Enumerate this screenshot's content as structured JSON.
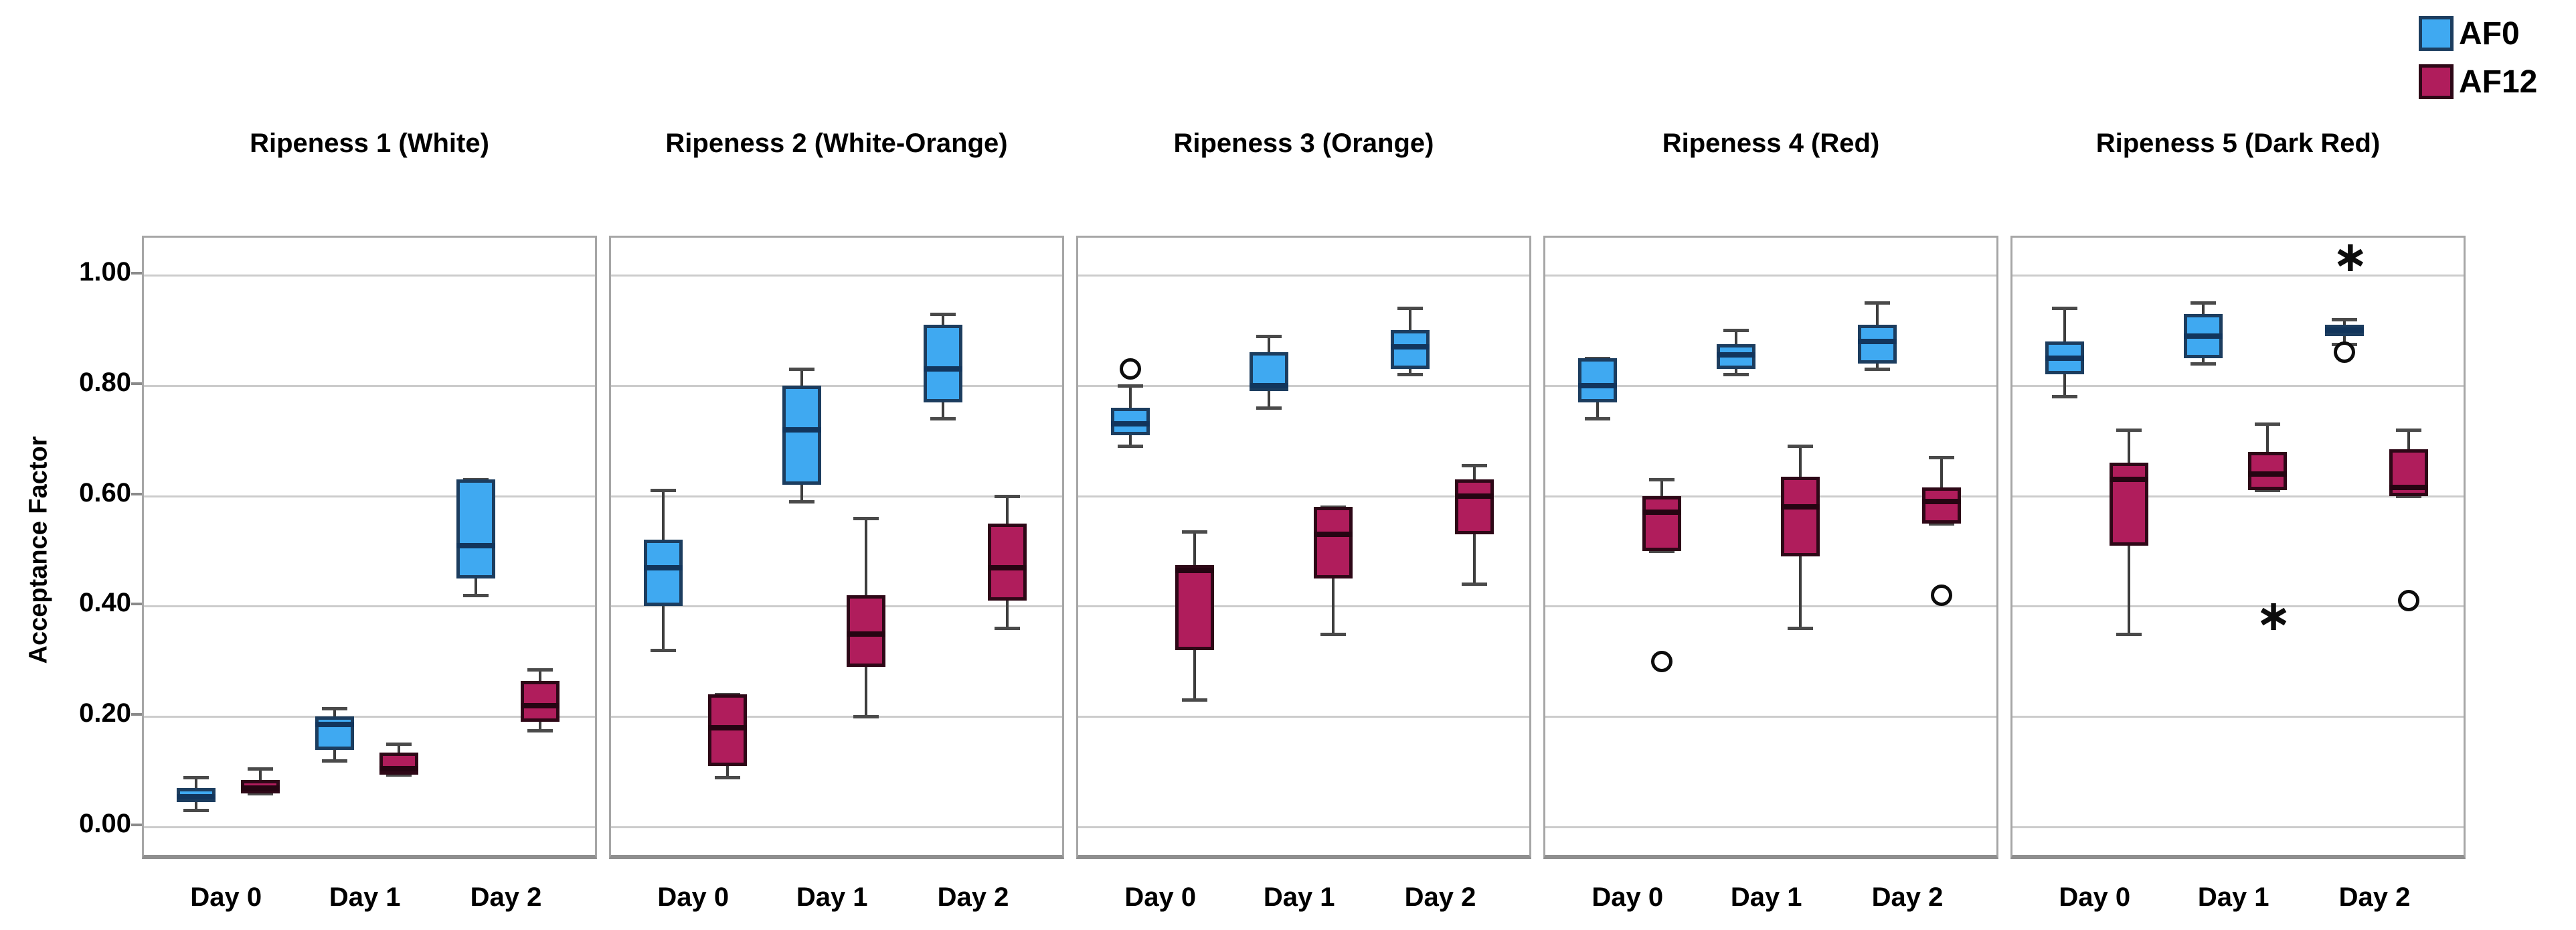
{
  "chart_data": {
    "type": "boxplot",
    "ylabel": "Acceptance Factor",
    "ylim": [
      -0.06,
      1.07
    ],
    "grid": true,
    "legend_position": "top-right",
    "legend": [
      {
        "label": "AF0",
        "color": "#3fa9f1"
      },
      {
        "label": "AF12",
        "color": "#b01d5c"
      }
    ],
    "y_ticks": [
      {
        "label": "1.00",
        "value": 1.0
      },
      {
        "label": "0.80",
        "value": 0.8
      },
      {
        "label": "0.60",
        "value": 0.6
      },
      {
        "label": "0.40",
        "value": 0.4
      },
      {
        "label": "0.20",
        "value": 0.2
      },
      {
        "label": "0.00",
        "value": 0.0
      }
    ],
    "categories": [
      "Day 0",
      "Day 1",
      "Day 2"
    ],
    "panels": [
      {
        "title": "Ripeness 1 (White)",
        "boxes": [
          {
            "day": "Day 0",
            "series": "AF0",
            "whisker_low": 0.03,
            "q1": 0.045,
            "median": 0.055,
            "q3": 0.07,
            "whisker_high": 0.09,
            "outliers": []
          },
          {
            "day": "Day 0",
            "series": "AF12",
            "whisker_low": 0.06,
            "q1": 0.06,
            "median": 0.07,
            "q3": 0.085,
            "whisker_high": 0.105,
            "outliers": []
          },
          {
            "day": "Day 1",
            "series": "AF0",
            "whisker_low": 0.12,
            "q1": 0.14,
            "median": 0.185,
            "q3": 0.2,
            "whisker_high": 0.215,
            "outliers": []
          },
          {
            "day": "Day 1",
            "series": "AF12",
            "whisker_low": 0.095,
            "q1": 0.095,
            "median": 0.105,
            "q3": 0.135,
            "whisker_high": 0.15,
            "outliers": []
          },
          {
            "day": "Day 2",
            "series": "AF0",
            "whisker_low": 0.42,
            "q1": 0.45,
            "median": 0.51,
            "q3": 0.63,
            "whisker_high": 0.63,
            "outliers": []
          },
          {
            "day": "Day 2",
            "series": "AF12",
            "whisker_low": 0.175,
            "q1": 0.19,
            "median": 0.22,
            "q3": 0.265,
            "whisker_high": 0.285,
            "outliers": []
          }
        ]
      },
      {
        "title": "Ripeness 2 (White-Orange)",
        "boxes": [
          {
            "day": "Day 0",
            "series": "AF0",
            "whisker_low": 0.32,
            "q1": 0.4,
            "median": 0.47,
            "q3": 0.52,
            "whisker_high": 0.61,
            "outliers": []
          },
          {
            "day": "Day 0",
            "series": "AF12",
            "whisker_low": 0.09,
            "q1": 0.11,
            "median": 0.18,
            "q3": 0.24,
            "whisker_high": 0.24,
            "outliers": []
          },
          {
            "day": "Day 1",
            "series": "AF0",
            "whisker_low": 0.59,
            "q1": 0.62,
            "median": 0.72,
            "q3": 0.8,
            "whisker_high": 0.83,
            "outliers": []
          },
          {
            "day": "Day 1",
            "series": "AF12",
            "whisker_low": 0.2,
            "q1": 0.29,
            "median": 0.35,
            "q3": 0.42,
            "whisker_high": 0.56,
            "outliers": []
          },
          {
            "day": "Day 2",
            "series": "AF0",
            "whisker_low": 0.74,
            "q1": 0.77,
            "median": 0.83,
            "q3": 0.91,
            "whisker_high": 0.93,
            "outliers": []
          },
          {
            "day": "Day 2",
            "series": "AF12",
            "whisker_low": 0.36,
            "q1": 0.41,
            "median": 0.47,
            "q3": 0.55,
            "whisker_high": 0.6,
            "outliers": []
          }
        ]
      },
      {
        "title": "Ripeness 3 (Orange)",
        "boxes": [
          {
            "day": "Day 0",
            "series": "AF0",
            "whisker_low": 0.69,
            "q1": 0.71,
            "median": 0.73,
            "q3": 0.76,
            "whisker_high": 0.8,
            "outliers": [
              {
                "type": "circle",
                "value": 0.83
              }
            ]
          },
          {
            "day": "Day 0",
            "series": "AF12",
            "whisker_low": 0.23,
            "q1": 0.32,
            "median": 0.465,
            "q3": 0.475,
            "whisker_high": 0.535,
            "outliers": []
          },
          {
            "day": "Day 1",
            "series": "AF0",
            "whisker_low": 0.76,
            "q1": 0.79,
            "median": 0.8,
            "q3": 0.86,
            "whisker_high": 0.89,
            "outliers": []
          },
          {
            "day": "Day 1",
            "series": "AF12",
            "whisker_low": 0.35,
            "q1": 0.45,
            "median": 0.53,
            "q3": 0.58,
            "whisker_high": 0.58,
            "outliers": []
          },
          {
            "day": "Day 2",
            "series": "AF0",
            "whisker_low": 0.82,
            "q1": 0.83,
            "median": 0.87,
            "q3": 0.9,
            "whisker_high": 0.94,
            "outliers": []
          },
          {
            "day": "Day 2",
            "series": "AF12",
            "whisker_low": 0.44,
            "q1": 0.53,
            "median": 0.6,
            "q3": 0.63,
            "whisker_high": 0.655,
            "outliers": []
          }
        ]
      },
      {
        "title": "Ripeness 4 (Red)",
        "boxes": [
          {
            "day": "Day 0",
            "series": "AF0",
            "whisker_low": 0.74,
            "q1": 0.77,
            "median": 0.8,
            "q3": 0.85,
            "whisker_high": 0.85,
            "outliers": []
          },
          {
            "day": "Day 0",
            "series": "AF12",
            "whisker_low": 0.5,
            "q1": 0.5,
            "median": 0.57,
            "q3": 0.6,
            "whisker_high": 0.63,
            "outliers": [
              {
                "type": "circle",
                "value": 0.3
              }
            ]
          },
          {
            "day": "Day 1",
            "series": "AF0",
            "whisker_low": 0.82,
            "q1": 0.83,
            "median": 0.855,
            "q3": 0.875,
            "whisker_high": 0.9,
            "outliers": []
          },
          {
            "day": "Day 1",
            "series": "AF12",
            "whisker_low": 0.36,
            "q1": 0.49,
            "median": 0.58,
            "q3": 0.635,
            "whisker_high": 0.69,
            "outliers": []
          },
          {
            "day": "Day 2",
            "series": "AF0",
            "whisker_low": 0.83,
            "q1": 0.84,
            "median": 0.88,
            "q3": 0.91,
            "whisker_high": 0.95,
            "outliers": []
          },
          {
            "day": "Day 2",
            "series": "AF12",
            "whisker_low": 0.55,
            "q1": 0.55,
            "median": 0.59,
            "q3": 0.615,
            "whisker_high": 0.67,
            "outliers": [
              {
                "type": "circle",
                "value": 0.42
              }
            ]
          }
        ]
      },
      {
        "title": "Ripeness 5 (Dark Red)",
        "boxes": [
          {
            "day": "Day 0",
            "series": "AF0",
            "whisker_low": 0.78,
            "q1": 0.82,
            "median": 0.85,
            "q3": 0.88,
            "whisker_high": 0.94,
            "outliers": []
          },
          {
            "day": "Day 0",
            "series": "AF12",
            "whisker_low": 0.35,
            "q1": 0.51,
            "median": 0.63,
            "q3": 0.66,
            "whisker_high": 0.72,
            "outliers": []
          },
          {
            "day": "Day 1",
            "series": "AF0",
            "whisker_low": 0.84,
            "q1": 0.85,
            "median": 0.89,
            "q3": 0.93,
            "whisker_high": 0.95,
            "outliers": []
          },
          {
            "day": "Day 1",
            "series": "AF12",
            "whisker_low": 0.61,
            "q1": 0.61,
            "median": 0.64,
            "q3": 0.68,
            "whisker_high": 0.73,
            "outliers": [
              {
                "type": "star",
                "value": 0.39
              }
            ]
          },
          {
            "day": "Day 2",
            "series": "AF0",
            "whisker_low": 0.875,
            "q1": 0.89,
            "median": 0.9,
            "q3": 0.91,
            "whisker_high": 0.92,
            "outliers": [
              {
                "type": "circle",
                "value": 0.86
              },
              {
                "type": "star",
                "value": 1.04
              }
            ]
          },
          {
            "day": "Day 2",
            "series": "AF12",
            "whisker_low": 0.6,
            "q1": 0.6,
            "median": 0.615,
            "q3": 0.685,
            "whisker_high": 0.72,
            "outliers": [
              {
                "type": "circle",
                "value": 0.41
              }
            ]
          }
        ]
      }
    ]
  }
}
